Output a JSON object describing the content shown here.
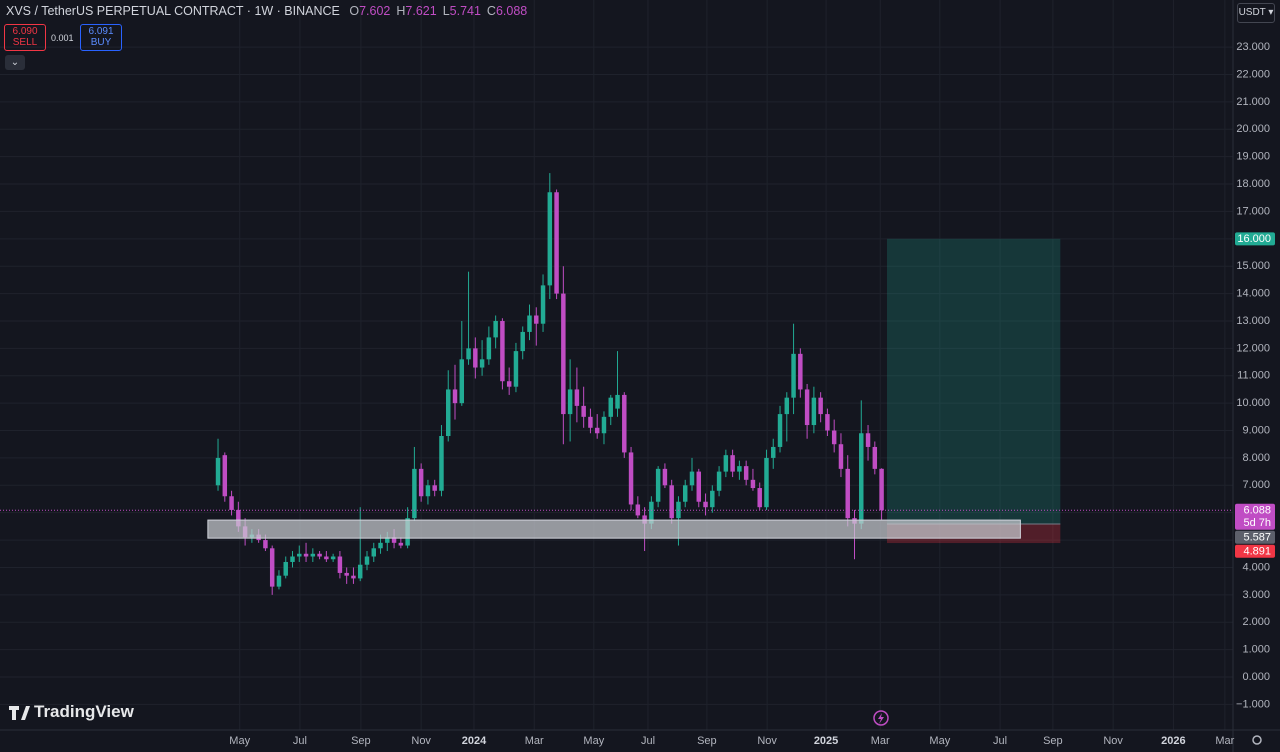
{
  "header": {
    "symbol": "XVS / TetherUS PERPETUAL CONTRACT · 1W · BINANCE",
    "ohlc": [
      {
        "label": "O",
        "value": "7.602"
      },
      {
        "label": "H",
        "value": "7.621"
      },
      {
        "label": "L",
        "value": "5.741"
      },
      {
        "label": "C",
        "value": "6.088"
      }
    ],
    "sell_price": "6.090",
    "sell_label": "SELL",
    "spread": "0.001",
    "buy_price": "6.091",
    "buy_label": "BUY",
    "currency": "USDT",
    "brand": "TradingView"
  },
  "chart_data": {
    "type": "candlestick",
    "up_color": "#22ab94",
    "down_color": "#c04dc4",
    "grid": true,
    "open": [
      7.0,
      8.1,
      6.6,
      6.1,
      5.5,
      5.1,
      5.2,
      5.0,
      4.7,
      3.3,
      3.7,
      4.2,
      4.4,
      4.5,
      4.4,
      4.5,
      4.4,
      4.3,
      4.4,
      3.8,
      3.7,
      3.6,
      4.1,
      4.4,
      4.7,
      4.9,
      5.1,
      4.9,
      4.8,
      5.8,
      7.6,
      6.6,
      7.0,
      6.8,
      8.8,
      10.5,
      10.0,
      11.6,
      12.0,
      11.3,
      11.6,
      12.4,
      13.0,
      10.8,
      10.6,
      11.9,
      12.6,
      13.2,
      12.9,
      14.3,
      17.7,
      14.0,
      9.6,
      10.5,
      9.9,
      9.5,
      9.1,
      8.9,
      9.5,
      9.8,
      10.3,
      8.2,
      6.3,
      5.9,
      5.6,
      6.4,
      7.6,
      7.0,
      5.8,
      6.4,
      7.0,
      7.5,
      6.4,
      6.2,
      6.8,
      7.5,
      8.1,
      7.5,
      7.7,
      7.2,
      6.9,
      6.2,
      8.0,
      8.4,
      9.6,
      10.2,
      11.8,
      10.5,
      9.2,
      10.2,
      9.6,
      9.0,
      8.5,
      7.6,
      5.8,
      5.6,
      8.9,
      8.4,
      7.602
    ],
    "high": [
      8.7,
      8.2,
      6.8,
      6.4,
      5.8,
      5.4,
      5.4,
      5.2,
      4.8,
      3.9,
      4.4,
      4.6,
      4.8,
      4.9,
      4.7,
      4.6,
      4.6,
      4.5,
      4.6,
      4.0,
      4.0,
      6.2,
      4.6,
      4.9,
      5.2,
      5.3,
      5.4,
      5.1,
      6.2,
      8.4,
      7.8,
      7.2,
      7.2,
      9.2,
      11.2,
      11.4,
      13.0,
      14.8,
      12.4,
      12.3,
      12.8,
      13.2,
      13.1,
      11.3,
      12.2,
      12.8,
      13.6,
      13.5,
      14.7,
      18.4,
      17.8,
      15.0,
      11.6,
      11.3,
      10.6,
      9.8,
      9.6,
      9.7,
      10.3,
      11.9,
      10.4,
      8.4,
      6.6,
      6.2,
      6.6,
      7.7,
      7.8,
      7.2,
      6.6,
      7.2,
      8.0,
      7.6,
      6.7,
      7.0,
      7.7,
      8.3,
      8.3,
      7.9,
      7.9,
      7.6,
      7.1,
      8.3,
      8.7,
      9.9,
      10.4,
      12.9,
      12.0,
      10.7,
      10.6,
      10.4,
      9.8,
      9.4,
      8.9,
      8.1,
      6.1,
      10.1,
      9.2,
      8.6,
      7.621
    ],
    "low": [
      6.8,
      6.4,
      5.9,
      5.3,
      4.8,
      4.9,
      4.9,
      4.6,
      3.0,
      3.2,
      3.6,
      4.0,
      4.2,
      4.2,
      4.2,
      4.3,
      4.2,
      4.2,
      3.6,
      3.4,
      3.4,
      3.5,
      3.9,
      4.2,
      4.5,
      4.6,
      4.7,
      4.7,
      4.7,
      5.7,
      6.4,
      6.3,
      6.6,
      6.6,
      8.6,
      9.4,
      9.9,
      11.4,
      10.9,
      11.0,
      11.4,
      12.0,
      10.5,
      10.3,
      10.4,
      11.6,
      12.3,
      12.1,
      12.6,
      13.8,
      13.8,
      8.5,
      8.6,
      9.3,
      9.1,
      8.9,
      8.7,
      8.5,
      9.2,
      9.5,
      8.0,
      6.1,
      5.8,
      4.6,
      5.4,
      6.2,
      6.9,
      5.6,
      4.8,
      6.2,
      6.8,
      6.2,
      5.9,
      6.0,
      6.6,
      7.3,
      7.3,
      7.2,
      7.0,
      6.8,
      6.1,
      6.1,
      7.6,
      8.2,
      8.6,
      9.6,
      10.2,
      8.7,
      8.9,
      9.3,
      8.8,
      8.2,
      7.3,
      5.5,
      4.3,
      5.4,
      7.9,
      7.4,
      5.741
    ],
    "close": [
      8.0,
      6.6,
      6.1,
      5.5,
      5.1,
      5.2,
      5.0,
      4.7,
      3.3,
      3.7,
      4.2,
      4.4,
      4.5,
      4.4,
      4.5,
      4.4,
      4.3,
      4.4,
      3.8,
      3.7,
      3.6,
      4.1,
      4.4,
      4.7,
      4.9,
      5.1,
      4.9,
      4.8,
      5.8,
      7.6,
      6.6,
      7.0,
      6.8,
      8.8,
      10.5,
      10.0,
      11.6,
      12.0,
      11.3,
      11.6,
      12.4,
      13.0,
      10.8,
      10.6,
      11.9,
      12.6,
      13.2,
      12.9,
      14.3,
      17.7,
      14.0,
      9.6,
      10.5,
      9.9,
      9.5,
      9.1,
      8.9,
      9.5,
      10.2,
      10.3,
      8.2,
      6.3,
      5.9,
      5.6,
      6.4,
      7.6,
      7.0,
      5.8,
      6.4,
      7.0,
      7.5,
      6.4,
      6.2,
      6.8,
      7.5,
      8.1,
      7.5,
      7.7,
      7.2,
      6.9,
      6.2,
      8.0,
      8.4,
      9.6,
      10.2,
      11.8,
      10.5,
      9.2,
      10.2,
      9.6,
      9.0,
      8.5,
      7.6,
      5.8,
      5.6,
      8.9,
      8.4,
      7.6,
      6.088
    ],
    "xlim": [
      -32.2,
      149.9
    ],
    "xticks": [
      {
        "value": 3.2,
        "label": "May"
      },
      {
        "value": 12.1,
        "label": "Jul"
      },
      {
        "value": 21.1,
        "label": "Sep"
      },
      {
        "value": 30.0,
        "label": "Nov"
      },
      {
        "value": 37.8,
        "label": "2024"
      },
      {
        "value": 46.7,
        "label": "Mar"
      },
      {
        "value": 55.5,
        "label": "May"
      },
      {
        "value": 63.5,
        "label": "Jul"
      },
      {
        "value": 72.2,
        "label": "Sep"
      },
      {
        "value": 81.1,
        "label": "Nov"
      },
      {
        "value": 89.8,
        "label": "2025"
      },
      {
        "value": 97.8,
        "label": "Mar"
      },
      {
        "value": 106.6,
        "label": "May"
      },
      {
        "value": 115.5,
        "label": "Jul"
      },
      {
        "value": 123.3,
        "label": "Sep"
      },
      {
        "value": 132.2,
        "label": "Nov"
      },
      {
        "value": 141.1,
        "label": "2026"
      },
      {
        "value": 148.7,
        "label": "Mar"
      }
    ],
    "ylim": [
      -1.935,
      24.72
    ],
    "yticks": [
      {
        "value": -1,
        "label": "−1.000"
      },
      {
        "value": 0,
        "label": "0.000"
      },
      {
        "value": 1,
        "label": "1.000"
      },
      {
        "value": 2,
        "label": "2.000"
      },
      {
        "value": 3,
        "label": "3.000"
      },
      {
        "value": 4,
        "label": "4.000"
      },
      {
        "value": 5,
        "label": "5.000"
      },
      {
        "value": 6,
        "label": "6.000"
      },
      {
        "value": 7,
        "label": "7.000"
      },
      {
        "value": 8,
        "label": "8.000"
      },
      {
        "value": 9,
        "label": "9.000"
      },
      {
        "value": 10,
        "label": "10.000"
      },
      {
        "value": 11,
        "label": "11.000"
      },
      {
        "value": 12,
        "label": "12.000"
      },
      {
        "value": 13,
        "label": "13.000"
      },
      {
        "value": 14,
        "label": "14.000"
      },
      {
        "value": 15,
        "label": "15.000"
      },
      {
        "value": 16,
        "label": "16.000"
      },
      {
        "value": 17,
        "label": "17.000"
      },
      {
        "value": 18,
        "label": "18.000"
      },
      {
        "value": 19,
        "label": "19.000"
      },
      {
        "value": 20,
        "label": "20.000"
      },
      {
        "value": 21,
        "label": "21.000"
      },
      {
        "value": 22,
        "label": "22.000"
      },
      {
        "value": 23,
        "label": "23.000"
      }
    ],
    "zone": {
      "xrange": [
        -1.5,
        118.5
      ],
      "yrange": [
        5.07,
        5.73
      ]
    },
    "position": {
      "xrange": [
        98.8,
        124.4
      ],
      "target": {
        "value": 16.0,
        "label": "16.000"
      },
      "entry": {
        "value": 5.587,
        "label": "5.587"
      },
      "stop": {
        "value": 4.891,
        "label": "4.891"
      }
    },
    "last_price": {
      "value": 6.088,
      "label": "6.088"
    },
    "countdown": "5d 7h"
  }
}
